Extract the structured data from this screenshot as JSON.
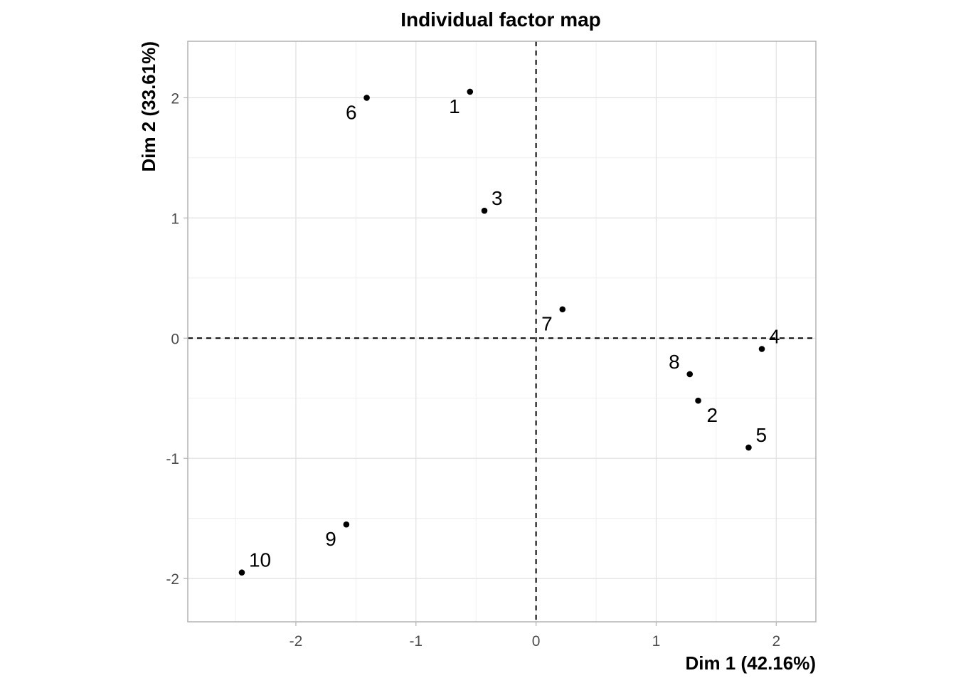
{
  "chart_data": {
    "type": "scatter",
    "title": "Individual factor map",
    "xlabel": "Dim 1 (42.16%)",
    "ylabel": "Dim 2 (33.61%)",
    "xlim": [
      -2.9,
      2.33
    ],
    "ylim": [
      -2.36,
      2.47
    ],
    "x_ticks": [
      -2,
      -1,
      0,
      1,
      2
    ],
    "y_ticks": [
      -2,
      -1,
      0,
      1,
      2
    ],
    "grid": true,
    "reference_lines": {
      "x": 0,
      "y": 0,
      "style": "dashed"
    },
    "colors": {
      "points": "#000000",
      "grid": "#dedede",
      "border": "#b3b3b3"
    },
    "points": [
      {
        "label": "1",
        "x": -0.55,
        "y": 2.05,
        "label_pos": "bottom-left"
      },
      {
        "label": "2",
        "x": 1.35,
        "y": -0.52,
        "label_pos": "bottom-right"
      },
      {
        "label": "3",
        "x": -0.43,
        "y": 1.06,
        "label_pos": "top-right"
      },
      {
        "label": "4",
        "x": 1.88,
        "y": -0.09,
        "label_pos": "top-right"
      },
      {
        "label": "5",
        "x": 1.77,
        "y": -0.91,
        "label_pos": "top-right"
      },
      {
        "label": "6",
        "x": -1.41,
        "y": 2.0,
        "label_pos": "bottom-left"
      },
      {
        "label": "7",
        "x": 0.22,
        "y": 0.24,
        "label_pos": "bottom-left"
      },
      {
        "label": "8",
        "x": 1.28,
        "y": -0.3,
        "label_pos": "top-left"
      },
      {
        "label": "9",
        "x": -1.58,
        "y": -1.55,
        "label_pos": "bottom-left"
      },
      {
        "label": "10",
        "x": -2.45,
        "y": -1.95,
        "label_pos": "top-right"
      }
    ]
  }
}
